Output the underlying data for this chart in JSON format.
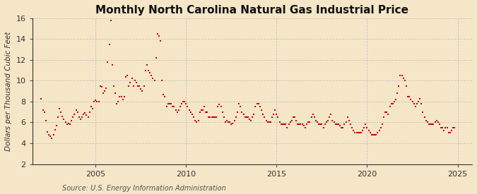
{
  "title": "Monthly North Carolina Natural Gas Industrial Price",
  "ylabel": "Dollars per Thousand Cubic Feet",
  "source": "Source: U.S. Energy Information Administration",
  "background_color": "#f5e6c8",
  "plot_bg_color": "#f5e6c8",
  "line_color": "#cc0000",
  "grid_color": "#bbbbbb",
  "tick_color": "#333333",
  "ylim": [
    2,
    16
  ],
  "yticks": [
    2,
    4,
    6,
    8,
    10,
    12,
    14,
    16
  ],
  "xlim_start": 2001.5,
  "xlim_end": 2025.8,
  "xticks": [
    2005,
    2010,
    2015,
    2020,
    2025
  ],
  "title_fontsize": 11,
  "ylabel_fontsize": 7.5,
  "tick_fontsize": 8,
  "source_fontsize": 7,
  "data": [
    [
      2002.0,
      8.3
    ],
    [
      2002.08,
      7.2
    ],
    [
      2002.17,
      7.0
    ],
    [
      2002.25,
      6.2
    ],
    [
      2002.33,
      5.1
    ],
    [
      2002.42,
      4.8
    ],
    [
      2002.5,
      4.7
    ],
    [
      2002.58,
      4.5
    ],
    [
      2002.67,
      4.8
    ],
    [
      2002.75,
      5.3
    ],
    [
      2002.83,
      5.7
    ],
    [
      2002.92,
      6.5
    ],
    [
      2003.0,
      7.3
    ],
    [
      2003.08,
      7.0
    ],
    [
      2003.17,
      6.6
    ],
    [
      2003.25,
      6.3
    ],
    [
      2003.33,
      6.0
    ],
    [
      2003.42,
      5.8
    ],
    [
      2003.5,
      5.9
    ],
    [
      2003.58,
      5.8
    ],
    [
      2003.67,
      6.2
    ],
    [
      2003.75,
      6.5
    ],
    [
      2003.83,
      6.8
    ],
    [
      2003.92,
      7.2
    ],
    [
      2004.0,
      7.0
    ],
    [
      2004.08,
      6.5
    ],
    [
      2004.17,
      6.3
    ],
    [
      2004.25,
      6.5
    ],
    [
      2004.33,
      6.8
    ],
    [
      2004.42,
      6.9
    ],
    [
      2004.5,
      6.7
    ],
    [
      2004.58,
      6.5
    ],
    [
      2004.67,
      7.0
    ],
    [
      2004.75,
      7.5
    ],
    [
      2004.83,
      7.3
    ],
    [
      2004.92,
      8.0
    ],
    [
      2005.0,
      8.1
    ],
    [
      2005.08,
      8.0
    ],
    [
      2005.17,
      8.0
    ],
    [
      2005.25,
      9.5
    ],
    [
      2005.33,
      9.4
    ],
    [
      2005.42,
      8.8
    ],
    [
      2005.5,
      9.0
    ],
    [
      2005.58,
      9.3
    ],
    [
      2005.67,
      11.8
    ],
    [
      2005.75,
      13.5
    ],
    [
      2005.83,
      15.8
    ],
    [
      2005.92,
      11.5
    ],
    [
      2006.0,
      9.5
    ],
    [
      2006.08,
      8.8
    ],
    [
      2006.17,
      7.8
    ],
    [
      2006.25,
      8.0
    ],
    [
      2006.33,
      8.5
    ],
    [
      2006.42,
      8.5
    ],
    [
      2006.5,
      8.2
    ],
    [
      2006.58,
      8.5
    ],
    [
      2006.67,
      10.4
    ],
    [
      2006.75,
      10.5
    ],
    [
      2006.83,
      9.5
    ],
    [
      2006.92,
      9.8
    ],
    [
      2007.0,
      10.2
    ],
    [
      2007.08,
      9.5
    ],
    [
      2007.17,
      10.0
    ],
    [
      2007.25,
      9.8
    ],
    [
      2007.33,
      9.5
    ],
    [
      2007.42,
      9.5
    ],
    [
      2007.5,
      9.2
    ],
    [
      2007.58,
      9.0
    ],
    [
      2007.67,
      9.5
    ],
    [
      2007.75,
      11.0
    ],
    [
      2007.83,
      11.5
    ],
    [
      2007.92,
      11.0
    ],
    [
      2008.0,
      10.8
    ],
    [
      2008.08,
      10.5
    ],
    [
      2008.17,
      10.2
    ],
    [
      2008.25,
      10.0
    ],
    [
      2008.33,
      12.2
    ],
    [
      2008.42,
      14.5
    ],
    [
      2008.5,
      14.3
    ],
    [
      2008.58,
      13.8
    ],
    [
      2008.67,
      10.0
    ],
    [
      2008.75,
      8.7
    ],
    [
      2008.83,
      8.5
    ],
    [
      2008.92,
      7.5
    ],
    [
      2009.0,
      7.8
    ],
    [
      2009.08,
      7.8
    ],
    [
      2009.17,
      7.8
    ],
    [
      2009.25,
      7.5
    ],
    [
      2009.33,
      7.5
    ],
    [
      2009.42,
      7.2
    ],
    [
      2009.5,
      7.0
    ],
    [
      2009.58,
      7.2
    ],
    [
      2009.67,
      7.5
    ],
    [
      2009.75,
      7.8
    ],
    [
      2009.83,
      8.0
    ],
    [
      2009.92,
      8.0
    ],
    [
      2010.0,
      7.8
    ],
    [
      2010.08,
      7.5
    ],
    [
      2010.17,
      7.2
    ],
    [
      2010.25,
      7.0
    ],
    [
      2010.33,
      6.8
    ],
    [
      2010.42,
      6.5
    ],
    [
      2010.5,
      6.2
    ],
    [
      2010.58,
      6.0
    ],
    [
      2010.67,
      6.2
    ],
    [
      2010.75,
      7.0
    ],
    [
      2010.83,
      7.2
    ],
    [
      2010.92,
      7.2
    ],
    [
      2011.0,
      7.5
    ],
    [
      2011.08,
      7.0
    ],
    [
      2011.17,
      7.0
    ],
    [
      2011.25,
      6.5
    ],
    [
      2011.33,
      6.5
    ],
    [
      2011.42,
      6.5
    ],
    [
      2011.5,
      6.5
    ],
    [
      2011.58,
      6.5
    ],
    [
      2011.67,
      6.5
    ],
    [
      2011.75,
      7.5
    ],
    [
      2011.83,
      7.7
    ],
    [
      2011.92,
      7.5
    ],
    [
      2012.0,
      7.0
    ],
    [
      2012.08,
      6.5
    ],
    [
      2012.17,
      6.0
    ],
    [
      2012.25,
      6.2
    ],
    [
      2012.33,
      6.0
    ],
    [
      2012.42,
      6.0
    ],
    [
      2012.5,
      5.8
    ],
    [
      2012.58,
      5.9
    ],
    [
      2012.67,
      6.2
    ],
    [
      2012.75,
      6.5
    ],
    [
      2012.83,
      7.0
    ],
    [
      2012.92,
      7.8
    ],
    [
      2013.0,
      7.5
    ],
    [
      2013.08,
      7.0
    ],
    [
      2013.17,
      6.8
    ],
    [
      2013.25,
      6.5
    ],
    [
      2013.33,
      6.5
    ],
    [
      2013.42,
      6.5
    ],
    [
      2013.5,
      6.3
    ],
    [
      2013.58,
      6.2
    ],
    [
      2013.67,
      6.5
    ],
    [
      2013.75,
      6.8
    ],
    [
      2013.83,
      7.5
    ],
    [
      2013.92,
      7.8
    ],
    [
      2014.0,
      7.8
    ],
    [
      2014.08,
      7.5
    ],
    [
      2014.17,
      7.2
    ],
    [
      2014.25,
      6.8
    ],
    [
      2014.33,
      6.5
    ],
    [
      2014.42,
      6.2
    ],
    [
      2014.5,
      6.0
    ],
    [
      2014.58,
      6.0
    ],
    [
      2014.67,
      6.0
    ],
    [
      2014.75,
      6.5
    ],
    [
      2014.83,
      6.8
    ],
    [
      2014.92,
      7.2
    ],
    [
      2015.0,
      6.8
    ],
    [
      2015.08,
      6.5
    ],
    [
      2015.17,
      6.0
    ],
    [
      2015.25,
      5.8
    ],
    [
      2015.33,
      5.8
    ],
    [
      2015.42,
      5.8
    ],
    [
      2015.5,
      5.8
    ],
    [
      2015.58,
      5.5
    ],
    [
      2015.67,
      5.8
    ],
    [
      2015.75,
      6.0
    ],
    [
      2015.83,
      6.2
    ],
    [
      2015.92,
      6.5
    ],
    [
      2016.0,
      6.5
    ],
    [
      2016.08,
      6.2
    ],
    [
      2016.17,
      5.8
    ],
    [
      2016.25,
      5.8
    ],
    [
      2016.33,
      5.8
    ],
    [
      2016.42,
      5.8
    ],
    [
      2016.5,
      5.7
    ],
    [
      2016.58,
      5.5
    ],
    [
      2016.67,
      5.8
    ],
    [
      2016.75,
      6.0
    ],
    [
      2016.83,
      6.0
    ],
    [
      2016.92,
      6.5
    ],
    [
      2017.0,
      6.8
    ],
    [
      2017.08,
      6.5
    ],
    [
      2017.17,
      6.2
    ],
    [
      2017.25,
      6.0
    ],
    [
      2017.33,
      5.8
    ],
    [
      2017.42,
      5.8
    ],
    [
      2017.5,
      5.8
    ],
    [
      2017.58,
      5.5
    ],
    [
      2017.67,
      5.8
    ],
    [
      2017.75,
      6.0
    ],
    [
      2017.83,
      6.2
    ],
    [
      2017.92,
      6.5
    ],
    [
      2018.0,
      6.8
    ],
    [
      2018.08,
      6.2
    ],
    [
      2018.17,
      6.0
    ],
    [
      2018.25,
      5.8
    ],
    [
      2018.33,
      5.8
    ],
    [
      2018.42,
      5.8
    ],
    [
      2018.5,
      5.7
    ],
    [
      2018.58,
      5.5
    ],
    [
      2018.67,
      5.5
    ],
    [
      2018.75,
      5.8
    ],
    [
      2018.83,
      6.0
    ],
    [
      2018.92,
      6.5
    ],
    [
      2019.0,
      6.2
    ],
    [
      2019.08,
      5.8
    ],
    [
      2019.17,
      5.5
    ],
    [
      2019.25,
      5.2
    ],
    [
      2019.33,
      5.0
    ],
    [
      2019.42,
      5.0
    ],
    [
      2019.5,
      5.0
    ],
    [
      2019.58,
      5.0
    ],
    [
      2019.67,
      5.0
    ],
    [
      2019.75,
      5.2
    ],
    [
      2019.83,
      5.5
    ],
    [
      2019.92,
      5.8
    ],
    [
      2020.0,
      5.5
    ],
    [
      2020.08,
      5.2
    ],
    [
      2020.17,
      5.0
    ],
    [
      2020.25,
      4.8
    ],
    [
      2020.33,
      4.8
    ],
    [
      2020.42,
      4.8
    ],
    [
      2020.5,
      4.8
    ],
    [
      2020.58,
      5.0
    ],
    [
      2020.67,
      5.2
    ],
    [
      2020.75,
      5.5
    ],
    [
      2020.83,
      5.8
    ],
    [
      2020.92,
      6.5
    ],
    [
      2021.0,
      7.0
    ],
    [
      2021.08,
      7.0
    ],
    [
      2021.17,
      6.8
    ],
    [
      2021.25,
      7.5
    ],
    [
      2021.33,
      7.8
    ],
    [
      2021.42,
      7.8
    ],
    [
      2021.5,
      8.0
    ],
    [
      2021.58,
      8.2
    ],
    [
      2021.67,
      8.8
    ],
    [
      2021.75,
      9.5
    ],
    [
      2021.83,
      10.5
    ],
    [
      2021.92,
      10.5
    ],
    [
      2022.0,
      10.2
    ],
    [
      2022.08,
      10.0
    ],
    [
      2022.17,
      9.5
    ],
    [
      2022.25,
      8.5
    ],
    [
      2022.33,
      8.5
    ],
    [
      2022.42,
      8.2
    ],
    [
      2022.5,
      8.0
    ],
    [
      2022.58,
      7.8
    ],
    [
      2022.67,
      7.5
    ],
    [
      2022.75,
      7.8
    ],
    [
      2022.83,
      8.0
    ],
    [
      2022.92,
      8.3
    ],
    [
      2023.0,
      7.8
    ],
    [
      2023.08,
      7.0
    ],
    [
      2023.17,
      6.5
    ],
    [
      2023.25,
      6.2
    ],
    [
      2023.33,
      6.0
    ],
    [
      2023.42,
      5.8
    ],
    [
      2023.5,
      5.8
    ],
    [
      2023.58,
      5.8
    ],
    [
      2023.67,
      5.8
    ],
    [
      2023.75,
      6.0
    ],
    [
      2023.83,
      6.2
    ],
    [
      2023.92,
      6.0
    ],
    [
      2024.0,
      5.8
    ],
    [
      2024.08,
      5.5
    ],
    [
      2024.17,
      5.5
    ],
    [
      2024.25,
      5.2
    ],
    [
      2024.33,
      5.5
    ],
    [
      2024.42,
      5.5
    ],
    [
      2024.5,
      5.0
    ],
    [
      2024.58,
      5.0
    ],
    [
      2024.67,
      5.2
    ],
    [
      2024.75,
      5.5
    ],
    [
      2024.83,
      5.5
    ]
  ]
}
